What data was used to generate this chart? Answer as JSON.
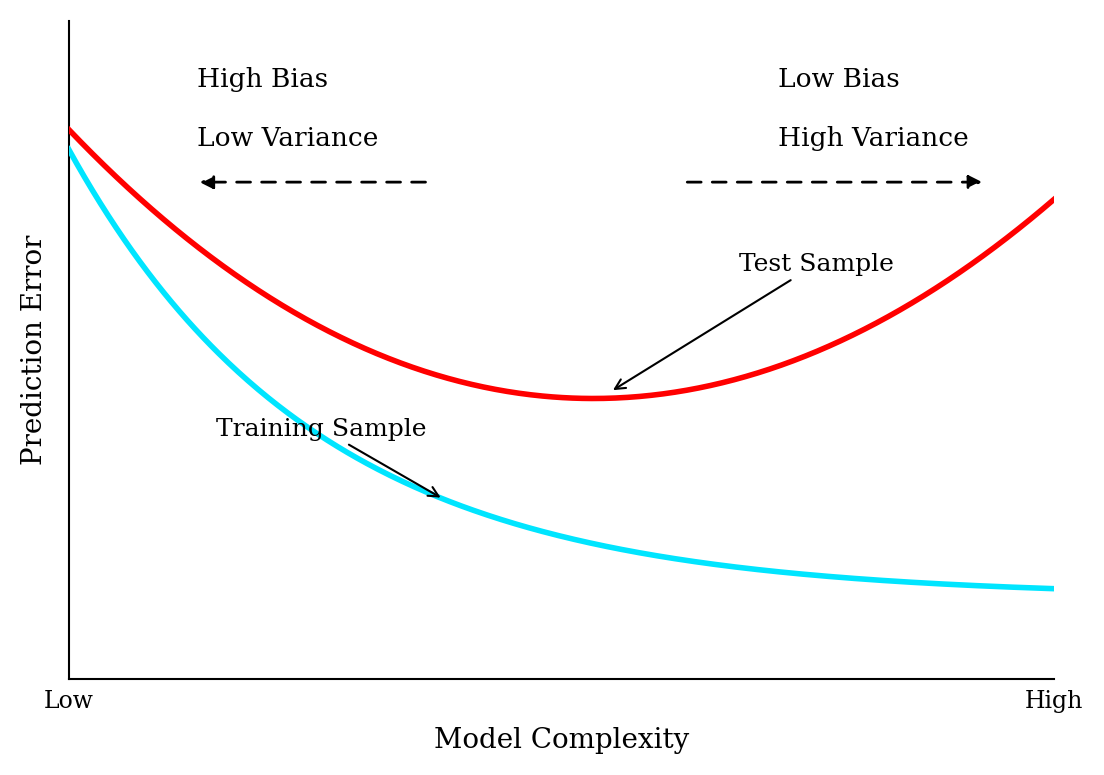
{
  "title": "",
  "xlabel": "Model Complexity",
  "ylabel": "Prediction Error",
  "xlabel_fontsize": 20,
  "ylabel_fontsize": 20,
  "tick_label_low": "Low",
  "tick_label_high": "High",
  "tick_fontsize": 17,
  "test_color": "#ff0000",
  "train_color": "#00e5ff",
  "line_width": 4.0,
  "annotation_fontsize": 18,
  "bias_variance_fontsize": 19,
  "high_bias_line1": "High Bias",
  "high_bias_line2": "Low Variance",
  "low_bias_line1": "Low Bias",
  "low_bias_line2": "High Variance",
  "test_label": "Test Sample",
  "train_label": "Training Sample",
  "background_color": "#ffffff",
  "xlim": [
    0,
    10
  ],
  "ylim": [
    0,
    10
  ]
}
